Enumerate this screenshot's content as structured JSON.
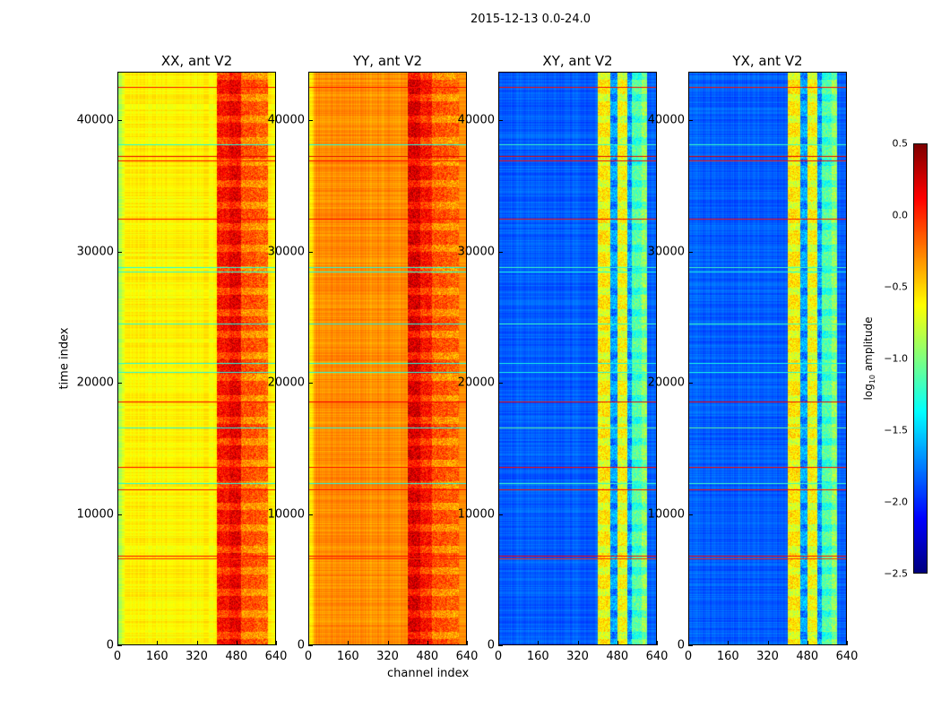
{
  "chart_data": {
    "type": "heatmap",
    "suptitle": "2015-12-13 0.0-24.0",
    "xlabel": "channel index",
    "ylabel": "time index",
    "xlim": [
      0,
      640
    ],
    "ylim": [
      0,
      43700
    ],
    "xticks": [
      "0",
      "160",
      "320",
      "480",
      "640"
    ],
    "yticks": [
      "0",
      "10000",
      "20000",
      "30000",
      "40000"
    ],
    "colorbar": {
      "label": "log10 amplitude",
      "label_main": "log",
      "label_sub": "10",
      "label_rest": " amplitude",
      "range": [
        -2.5,
        0.5
      ],
      "ticks": [
        "0.5",
        "0.0",
        "−0.5",
        "−1.0",
        "−1.5",
        "−2.0",
        "−2.5"
      ],
      "colormap": "jet"
    },
    "panels": [
      {
        "title": "XX, ant V2",
        "base": -0.6,
        "bands": [
          [
            400,
            450,
            0.1
          ],
          [
            450,
            500,
            0.2
          ],
          [
            500,
            560,
            -0.1
          ],
          [
            560,
            610,
            -0.15
          ]
        ]
      },
      {
        "title": "YY, ant V2",
        "base": -0.3,
        "bands": [
          [
            400,
            450,
            0.25
          ],
          [
            450,
            500,
            0.1
          ],
          [
            500,
            560,
            -0.1
          ],
          [
            560,
            610,
            -0.15
          ]
        ]
      },
      {
        "title": "XY, ant V2",
        "base": -1.85,
        "bands": [
          [
            400,
            450,
            -0.55
          ],
          [
            450,
            480,
            -1.6
          ],
          [
            480,
            520,
            -0.6
          ],
          [
            520,
            540,
            -1.6
          ],
          [
            540,
            580,
            -1.1
          ],
          [
            580,
            600,
            -0.9
          ]
        ]
      },
      {
        "title": "YX, ant V2",
        "base": -1.85,
        "bands": [
          [
            400,
            450,
            -0.55
          ],
          [
            450,
            480,
            -1.6
          ],
          [
            480,
            520,
            -0.6
          ],
          [
            520,
            540,
            -1.6
          ],
          [
            540,
            580,
            -1.1
          ],
          [
            580,
            600,
            -0.9
          ]
        ]
      }
    ],
    "flagged_rows": [
      {
        "t": 42600,
        "v": 0.1
      },
      {
        "t": 38200,
        "v": -1.2
      },
      {
        "t": 37300,
        "v": 0.2
      },
      {
        "t": 37000,
        "v": 0.1
      },
      {
        "t": 32500,
        "v": 0.1
      },
      {
        "t": 28800,
        "v": -1.2
      },
      {
        "t": 28500,
        "v": -1.3
      },
      {
        "t": 24500,
        "v": -1.2
      },
      {
        "t": 21500,
        "v": -1.3
      },
      {
        "t": 20800,
        "v": -1.3
      },
      {
        "t": 18500,
        "v": 0.15
      },
      {
        "t": 16500,
        "v": -1.1
      },
      {
        "t": 13500,
        "v": 0.1
      },
      {
        "t": 12300,
        "v": -1.2
      },
      {
        "t": 11800,
        "v": 0.1
      },
      {
        "t": 6700,
        "v": 0.1
      },
      {
        "t": 6500,
        "v": 0.0
      }
    ]
  }
}
